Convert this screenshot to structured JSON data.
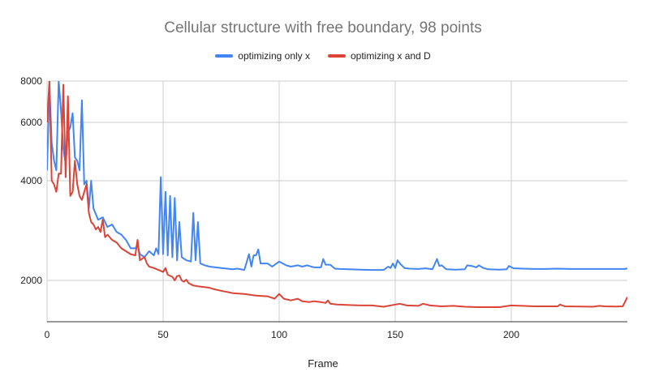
{
  "chart_data": {
    "type": "line",
    "title": "Cellular structure with free boundary, 98 points",
    "xlabel": "Frame",
    "ylabel": "",
    "y_scale": "log",
    "xlim": [
      0,
      250
    ],
    "ylim": [
      1500,
      8000
    ],
    "x_ticks": [
      0,
      50,
      100,
      150,
      200
    ],
    "y_ticks": [
      2000,
      4000,
      6000,
      8000
    ],
    "grid": true,
    "legend_position": "top-center",
    "series": [
      {
        "name": "optimizing only x",
        "color": "#4285f4",
        "points": [
          [
            0,
            4300
          ],
          [
            1,
            7800
          ],
          [
            2,
            5200
          ],
          [
            3,
            4600
          ],
          [
            4,
            4300
          ],
          [
            5,
            8000
          ],
          [
            6,
            6500
          ],
          [
            7,
            5000
          ],
          [
            8,
            4500
          ],
          [
            9,
            5600
          ],
          [
            10,
            5800
          ],
          [
            11,
            6400
          ],
          [
            12,
            4700
          ],
          [
            13,
            4600
          ],
          [
            14,
            4300
          ],
          [
            15,
            7000
          ],
          [
            16,
            3900
          ],
          [
            17,
            4000
          ],
          [
            18,
            3300
          ],
          [
            19,
            4000
          ],
          [
            20,
            3300
          ],
          [
            22,
            3050
          ],
          [
            24,
            3100
          ],
          [
            26,
            2900
          ],
          [
            28,
            2950
          ],
          [
            30,
            2800
          ],
          [
            32,
            2750
          ],
          [
            34,
            2650
          ],
          [
            36,
            2500
          ],
          [
            38,
            2500
          ],
          [
            39,
            2550
          ],
          [
            40,
            2400
          ],
          [
            42,
            2350
          ],
          [
            44,
            2450
          ],
          [
            46,
            2380
          ],
          [
            47,
            2500
          ],
          [
            48,
            2400
          ],
          [
            49,
            4100
          ],
          [
            50,
            2400
          ],
          [
            51,
            3700
          ],
          [
            52,
            2380
          ],
          [
            53,
            3600
          ],
          [
            54,
            2350
          ],
          [
            55,
            3550
          ],
          [
            56,
            2300
          ],
          [
            57,
            3000
          ],
          [
            58,
            2350
          ],
          [
            60,
            2300
          ],
          [
            62,
            2280
          ],
          [
            63,
            3200
          ],
          [
            64,
            2300
          ],
          [
            65,
            3000
          ],
          [
            66,
            2250
          ],
          [
            68,
            2220
          ],
          [
            70,
            2200
          ],
          [
            75,
            2180
          ],
          [
            80,
            2160
          ],
          [
            82,
            2170
          ],
          [
            85,
            2150
          ],
          [
            87,
            2400
          ],
          [
            88,
            2200
          ],
          [
            89,
            2380
          ],
          [
            90,
            2380
          ],
          [
            91,
            2480
          ],
          [
            92,
            2250
          ],
          [
            95,
            2250
          ],
          [
            97,
            2200
          ],
          [
            100,
            2280
          ],
          [
            103,
            2220
          ],
          [
            105,
            2200
          ],
          [
            108,
            2220
          ],
          [
            110,
            2200
          ],
          [
            112,
            2220
          ],
          [
            115,
            2190
          ],
          [
            118,
            2190
          ],
          [
            119,
            2320
          ],
          [
            120,
            2230
          ],
          [
            122,
            2230
          ],
          [
            124,
            2170
          ],
          [
            126,
            2165
          ],
          [
            130,
            2160
          ],
          [
            135,
            2155
          ],
          [
            140,
            2150
          ],
          [
            145,
            2150
          ],
          [
            147,
            2200
          ],
          [
            148,
            2180
          ],
          [
            149,
            2250
          ],
          [
            150,
            2180
          ],
          [
            151,
            2300
          ],
          [
            152,
            2250
          ],
          [
            154,
            2180
          ],
          [
            156,
            2170
          ],
          [
            160,
            2165
          ],
          [
            163,
            2175
          ],
          [
            166,
            2160
          ],
          [
            168,
            2320
          ],
          [
            169,
            2210
          ],
          [
            170,
            2220
          ],
          [
            172,
            2160
          ],
          [
            176,
            2155
          ],
          [
            180,
            2160
          ],
          [
            181,
            2220
          ],
          [
            183,
            2210
          ],
          [
            185,
            2190
          ],
          [
            186,
            2220
          ],
          [
            188,
            2180
          ],
          [
            190,
            2160
          ],
          [
            195,
            2155
          ],
          [
            198,
            2160
          ],
          [
            199,
            2210
          ],
          [
            201,
            2175
          ],
          [
            205,
            2170
          ],
          [
            210,
            2165
          ],
          [
            215,
            2165
          ],
          [
            220,
            2170
          ],
          [
            225,
            2165
          ],
          [
            230,
            2165
          ],
          [
            235,
            2165
          ],
          [
            240,
            2165
          ],
          [
            245,
            2165
          ],
          [
            249,
            2165
          ],
          [
            250,
            2175
          ]
        ]
      },
      {
        "name": "optimizing x and D",
        "color": "#db4437",
        "points": [
          [
            0,
            6000
          ],
          [
            1,
            8000
          ],
          [
            2,
            4000
          ],
          [
            3,
            3900
          ],
          [
            4,
            3700
          ],
          [
            5,
            4200
          ],
          [
            6,
            4200
          ],
          [
            7,
            7800
          ],
          [
            8,
            4100
          ],
          [
            9,
            7200
          ],
          [
            10,
            3600
          ],
          [
            11,
            3700
          ],
          [
            12,
            4600
          ],
          [
            13,
            3900
          ],
          [
            14,
            3600
          ],
          [
            15,
            3500
          ],
          [
            16,
            3700
          ],
          [
            17,
            3900
          ],
          [
            18,
            3200
          ],
          [
            19,
            3000
          ],
          [
            20,
            2950
          ],
          [
            21,
            2850
          ],
          [
            22,
            2900
          ],
          [
            23,
            2800
          ],
          [
            24,
            3050
          ],
          [
            25,
            2700
          ],
          [
            26,
            2750
          ],
          [
            28,
            2650
          ],
          [
            30,
            2600
          ],
          [
            32,
            2500
          ],
          [
            34,
            2450
          ],
          [
            36,
            2400
          ],
          [
            38,
            2380
          ],
          [
            39,
            2650
          ],
          [
            40,
            2300
          ],
          [
            42,
            2350
          ],
          [
            43,
            2250
          ],
          [
            44,
            2200
          ],
          [
            46,
            2180
          ],
          [
            48,
            2150
          ],
          [
            50,
            2120
          ],
          [
            51,
            2180
          ],
          [
            52,
            2080
          ],
          [
            54,
            2050
          ],
          [
            55,
            2000
          ],
          [
            56,
            2060
          ],
          [
            57,
            2070
          ],
          [
            58,
            2000
          ],
          [
            59,
            1980
          ],
          [
            60,
            2010
          ],
          [
            61,
            1960
          ],
          [
            63,
            1930
          ],
          [
            65,
            1920
          ],
          [
            70,
            1900
          ],
          [
            72,
            1880
          ],
          [
            75,
            1860
          ],
          [
            80,
            1830
          ],
          [
            85,
            1820
          ],
          [
            90,
            1800
          ],
          [
            95,
            1790
          ],
          [
            98,
            1760
          ],
          [
            100,
            1820
          ],
          [
            102,
            1760
          ],
          [
            105,
            1740
          ],
          [
            108,
            1760
          ],
          [
            110,
            1730
          ],
          [
            113,
            1720
          ],
          [
            115,
            1730
          ],
          [
            118,
            1720
          ],
          [
            120,
            1710
          ],
          [
            121,
            1740
          ],
          [
            122,
            1700
          ],
          [
            125,
            1690
          ],
          [
            130,
            1685
          ],
          [
            135,
            1680
          ],
          [
            140,
            1680
          ],
          [
            145,
            1665
          ],
          [
            150,
            1690
          ],
          [
            152,
            1700
          ],
          [
            155,
            1680
          ],
          [
            160,
            1675
          ],
          [
            162,
            1700
          ],
          [
            165,
            1680
          ],
          [
            170,
            1670
          ],
          [
            175,
            1675
          ],
          [
            180,
            1665
          ],
          [
            185,
            1660
          ],
          [
            190,
            1660
          ],
          [
            195,
            1660
          ],
          [
            200,
            1680
          ],
          [
            205,
            1675
          ],
          [
            210,
            1670
          ],
          [
            215,
            1670
          ],
          [
            220,
            1670
          ],
          [
            221,
            1690
          ],
          [
            223,
            1670
          ],
          [
            230,
            1668
          ],
          [
            235,
            1665
          ],
          [
            238,
            1675
          ],
          [
            240,
            1670
          ],
          [
            245,
            1668
          ],
          [
            248,
            1670
          ],
          [
            249,
            1720
          ],
          [
            250,
            1780
          ]
        ]
      }
    ]
  }
}
